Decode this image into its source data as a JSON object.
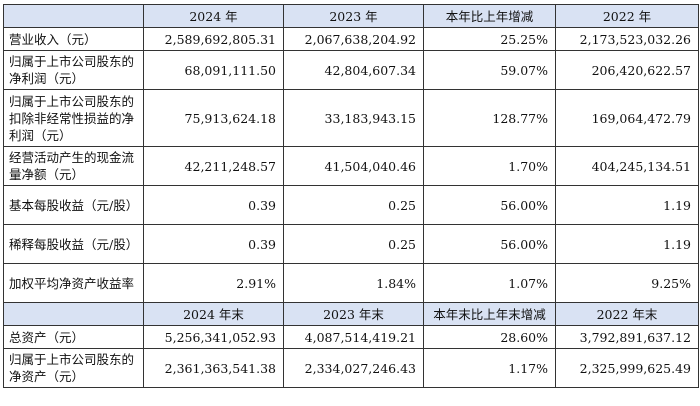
{
  "header1": {
    "col0": "",
    "col1": "2024 年",
    "col2": "2023 年",
    "col3": "本年比上年增减",
    "col4": "2022 年"
  },
  "rows1": [
    {
      "label": "营业收入（元）",
      "v2024": "2,589,692,805.31",
      "v2023": "2,067,638,204.92",
      "change": "25.25%",
      "v2022": "2,173,523,032.26"
    },
    {
      "label": "归属于上市公司股东的净利润（元）",
      "v2024": "68,091,111.50",
      "v2023": "42,804,607.34",
      "change": "59.07%",
      "v2022": "206,420,622.57"
    },
    {
      "label": "归属于上市公司股东的扣除非经常性损益的净利润（元）",
      "v2024": "75,913,624.18",
      "v2023": "33,183,943.15",
      "change": "128.77%",
      "v2022": "169,064,472.79"
    },
    {
      "label": "经营活动产生的现金流量净额（元）",
      "v2024": "42,211,248.57",
      "v2023": "41,504,040.46",
      "change": "1.70%",
      "v2022": "404,245,134.51"
    },
    {
      "label": "基本每股收益（元/股）",
      "v2024": "0.39",
      "v2023": "0.25",
      "change": "56.00%",
      "v2022": "1.19"
    },
    {
      "label": "稀释每股收益（元/股）",
      "v2024": "0.39",
      "v2023": "0.25",
      "change": "56.00%",
      "v2022": "1.19"
    },
    {
      "label": "加权平均净资产收益率",
      "v2024": "2.91%",
      "v2023": "1.84%",
      "change": "1.07%",
      "v2022": "9.25%"
    }
  ],
  "header2": {
    "col0": "",
    "col1": "2024 年末",
    "col2": "2023 年末",
    "col3": "本年末比上年末增减",
    "col4": "2022 年末"
  },
  "rows2": [
    {
      "label": "总资产（元）",
      "v2024": "5,256,341,052.93",
      "v2023": "4,087,514,419.21",
      "change": "28.60%",
      "v2022": "3,792,891,637.12"
    },
    {
      "label": "归属于上市公司股东的净资产（元）",
      "v2024": "2,361,363,541.38",
      "v2023": "2,334,027,246.43",
      "change": "1.17%",
      "v2022": "2,325,999,625.49"
    }
  ]
}
